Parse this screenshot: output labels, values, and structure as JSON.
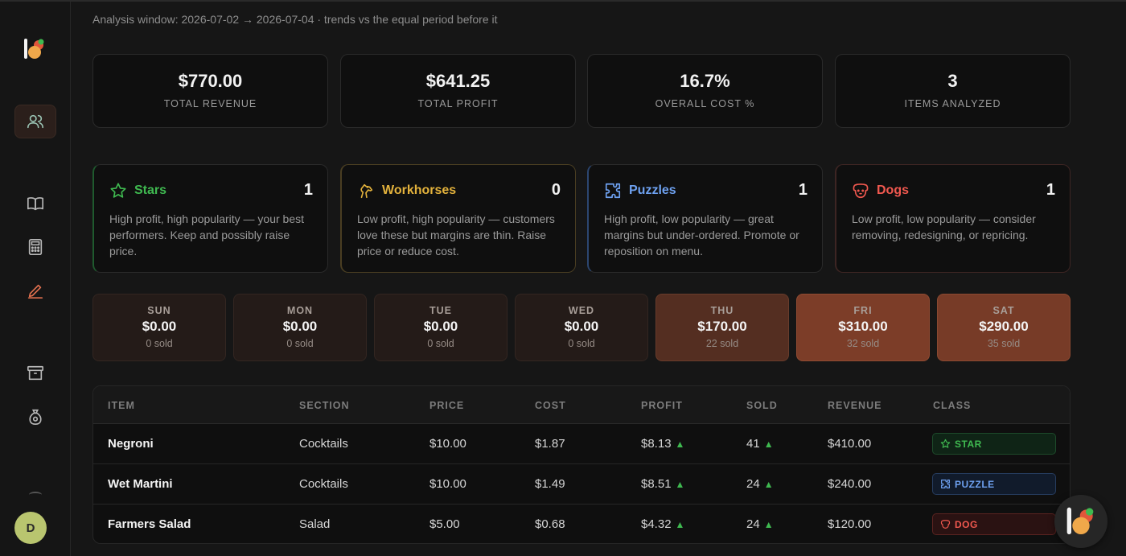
{
  "header": {
    "window_note": "Analysis window: 2026-07-02 → 2026-07-04 · trends vs the equal period before it"
  },
  "stats": [
    {
      "value": "$770.00",
      "label": "TOTAL REVENUE"
    },
    {
      "value": "$641.25",
      "label": "TOTAL PROFIT"
    },
    {
      "value": "16.7%",
      "label": "OVERALL COST %"
    },
    {
      "value": "3",
      "label": "ITEMS ANALYZED"
    }
  ],
  "classes": [
    {
      "name": "Stars",
      "count": "1",
      "desc": "High profit, high popularity — your best performers. Keep and possibly raise price.",
      "color": "#3fb950",
      "icon": "star-icon"
    },
    {
      "name": "Workhorses",
      "count": "0",
      "desc": "Low profit, high popularity — customers love these but margins are thin. Raise price or reduce cost.",
      "color": "#e3b23c",
      "icon": "horse-icon"
    },
    {
      "name": "Puzzles",
      "count": "1",
      "desc": "High profit, low popularity — great margins but under-ordered. Promote or reposition on menu.",
      "color": "#6ea1f0",
      "icon": "puzzle-icon"
    },
    {
      "name": "Dogs",
      "count": "1",
      "desc": "Low profit, low popularity — consider removing, redesigning, or repricing.",
      "color": "#f0584f",
      "icon": "dog-icon"
    }
  ],
  "days": [
    {
      "name": "SUN",
      "revenue": "$0.00",
      "sold": "0 sold",
      "level": 0
    },
    {
      "name": "MON",
      "revenue": "$0.00",
      "sold": "0 sold",
      "level": 0
    },
    {
      "name": "TUE",
      "revenue": "$0.00",
      "sold": "0 sold",
      "level": 0
    },
    {
      "name": "WED",
      "revenue": "$0.00",
      "sold": "0 sold",
      "level": 0
    },
    {
      "name": "THU",
      "revenue": "$170.00",
      "sold": "22 sold",
      "level": 0.55
    },
    {
      "name": "FRI",
      "revenue": "$310.00",
      "sold": "32 sold",
      "level": 1
    },
    {
      "name": "SAT",
      "revenue": "$290.00",
      "sold": "35 sold",
      "level": 0.94
    }
  ],
  "table": {
    "headers": [
      "ITEM",
      "SECTION",
      "PRICE",
      "COST",
      "PROFIT",
      "SOLD",
      "REVENUE",
      "CLASS"
    ],
    "rows": [
      {
        "item": "Negroni",
        "section": "Cocktails",
        "price": "$10.00",
        "cost": "$1.87",
        "profit": "$8.13",
        "sold": "41",
        "revenue": "$410.00",
        "class": "STAR",
        "class_icon": "star-icon"
      },
      {
        "item": "Wet Martini",
        "section": "Cocktails",
        "price": "$10.00",
        "cost": "$1.49",
        "profit": "$8.51",
        "sold": "24",
        "revenue": "$240.00",
        "class": "PUZZLE",
        "class_icon": "puzzle-icon"
      },
      {
        "item": "Farmers Salad",
        "section": "Salad",
        "price": "$5.00",
        "cost": "$0.68",
        "profit": "$4.32",
        "sold": "24",
        "revenue": "$120.00",
        "class": "DOG",
        "class_icon": "dog-icon"
      }
    ],
    "trend_glyph": "▲"
  },
  "user": {
    "avatar_initial": "D"
  }
}
